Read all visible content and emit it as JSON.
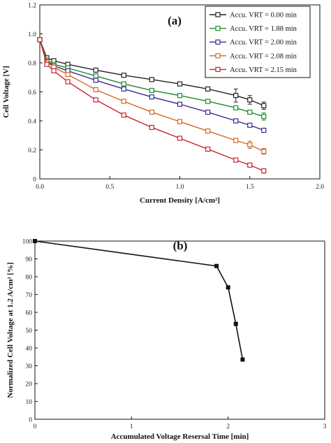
{
  "chart_data": [
    {
      "type": "line",
      "panel_label": "(a)",
      "xlabel": "Current Density [A/cm²]",
      "ylabel": "Cell Voltage [V]",
      "xlim": [
        0,
        2.0
      ],
      "ylim": [
        0,
        1.2
      ],
      "x_ticks": [
        "0.0",
        "0.5",
        "1.0",
        "1.5",
        "2.0"
      ],
      "y_ticks": [
        "0",
        "0.2",
        "0.4",
        "0.6",
        "0.8",
        "1.0",
        "1.2"
      ],
      "legend_position": "top-right",
      "grid": false,
      "series": [
        {
          "name": "Accu. VRT = 0.00 min",
          "color": "#222222",
          "x": [
            0.0,
            0.05,
            0.1,
            0.2,
            0.4,
            0.6,
            0.8,
            1.0,
            1.2,
            1.4,
            1.5,
            1.6
          ],
          "y": [
            0.96,
            0.835,
            0.815,
            0.79,
            0.75,
            0.715,
            0.685,
            0.655,
            0.62,
            0.575,
            0.545,
            0.505
          ],
          "err": [
            0,
            0,
            0,
            0,
            0,
            0,
            0,
            0,
            0,
            0.045,
            0.03,
            0.025
          ]
        },
        {
          "name": "Accu. VRT = 1.88 min",
          "color": "#1e8a2e",
          "x": [
            0.0,
            0.05,
            0.1,
            0.2,
            0.4,
            0.6,
            0.8,
            1.0,
            1.2,
            1.4,
            1.5,
            1.6
          ],
          "y": [
            0.96,
            0.82,
            0.79,
            0.765,
            0.71,
            0.655,
            0.61,
            0.575,
            0.535,
            0.49,
            0.46,
            0.43
          ],
          "err": [
            0,
            0,
            0,
            0,
            0,
            0,
            0,
            0,
            0,
            0,
            0,
            0.025
          ]
        },
        {
          "name": "Accu. VRT = 2.00 min",
          "color": "#3a2a8c",
          "x": [
            0.0,
            0.05,
            0.1,
            0.2,
            0.4,
            0.6,
            0.8,
            1.0,
            1.2,
            1.4,
            1.5,
            1.6
          ],
          "y": [
            0.96,
            0.81,
            0.78,
            0.745,
            0.68,
            0.62,
            0.565,
            0.515,
            0.46,
            0.4,
            0.37,
            0.335
          ],
          "err": [
            0,
            0,
            0,
            0,
            0,
            0,
            0,
            0,
            0,
            0,
            0,
            0
          ]
        },
        {
          "name": "Accu. VRT = 2.08 min",
          "color": "#d2691e",
          "x": [
            0.0,
            0.05,
            0.1,
            0.2,
            0.4,
            0.6,
            0.8,
            1.0,
            1.2,
            1.4,
            1.5,
            1.6
          ],
          "y": [
            0.96,
            0.805,
            0.77,
            0.72,
            0.615,
            0.535,
            0.46,
            0.395,
            0.33,
            0.265,
            0.235,
            0.19
          ],
          "err": [
            0,
            0,
            0,
            0,
            0,
            0,
            0,
            0,
            0,
            0,
            0.025,
            0.02
          ]
        },
        {
          "name": "Accu. VRT = 2.15 min",
          "color": "#c8242b",
          "x": [
            0.0,
            0.05,
            0.1,
            0.2,
            0.4,
            0.6,
            0.8,
            1.0,
            1.2,
            1.4,
            1.5,
            1.6
          ],
          "y": [
            0.96,
            0.79,
            0.745,
            0.67,
            0.545,
            0.44,
            0.355,
            0.28,
            0.205,
            0.13,
            0.095,
            0.055
          ],
          "err": [
            0,
            0,
            0,
            0,
            0,
            0,
            0,
            0,
            0,
            0,
            0,
            0.015
          ]
        }
      ]
    },
    {
      "type": "line",
      "panel_label": "(b)",
      "xlabel": "Accumulated Voltage Resersal Time [min]",
      "ylabel": "Normalized Cell Voltage at 1.2 A/cm² [%]",
      "xlim": [
        0,
        3
      ],
      "ylim": [
        0,
        100
      ],
      "x_ticks": [
        "0",
        "1",
        "2",
        "3"
      ],
      "y_ticks": [
        "0",
        "10",
        "20",
        "30",
        "40",
        "50",
        "60",
        "70",
        "80",
        "90",
        "100"
      ],
      "grid": false,
      "series": [
        {
          "color": "#111111",
          "x": [
            0.0,
            1.88,
            2.0,
            2.08,
            2.15
          ],
          "y": [
            100,
            86,
            74,
            53.5,
            33.5
          ]
        }
      ]
    }
  ]
}
